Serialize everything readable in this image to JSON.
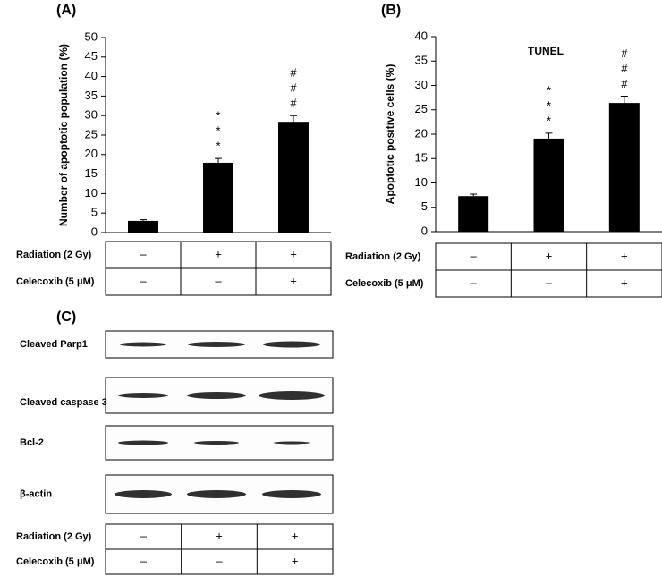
{
  "chart_data": [
    {
      "type": "bar",
      "panel": "(A)",
      "ylabel": "Number of apoptotic population (%)",
      "values": [
        3.0,
        17.9,
        28.4
      ],
      "errors": [
        0.3,
        1.1,
        1.6
      ],
      "annotations": [
        null,
        [
          "*",
          "*",
          "*"
        ],
        [
          "#",
          "#",
          "#"
        ]
      ],
      "color": "#000000",
      "ylim": [
        0,
        50
      ],
      "yticks": [
        0,
        5,
        10,
        15,
        20,
        25,
        30,
        35,
        40,
        45,
        50
      ],
      "conditions": {
        "rows": [
          {
            "label": "Radiation (2 Gy)",
            "cells": [
              "–",
              "+",
              "+"
            ]
          },
          {
            "label": "Celecoxib (5 μM)",
            "cells": [
              "–",
              "–",
              "+"
            ]
          }
        ]
      }
    },
    {
      "type": "bar",
      "panel": "(B)",
      "title": "TUNEL",
      "ylabel": "Apoptotic positive cells (%)",
      "values": [
        7.3,
        19.1,
        26.4
      ],
      "errors": [
        0.4,
        1.1,
        1.4
      ],
      "annotations": [
        null,
        [
          "*",
          "*",
          "*"
        ],
        [
          "#",
          "#",
          "#"
        ]
      ],
      "color": "#000000",
      "ylim": [
        0,
        40
      ],
      "yticks": [
        0,
        5,
        10,
        15,
        20,
        25,
        30,
        35,
        40
      ],
      "conditions": {
        "rows": [
          {
            "label": "Radiation (2 Gy)",
            "cells": [
              "–",
              "+",
              "+"
            ]
          },
          {
            "label": "Celecoxib (5 μM)",
            "cells": [
              "–",
              "–",
              "+"
            ]
          }
        ]
      }
    }
  ],
  "blot": {
    "panel": "(C)",
    "bands": [
      "Cleaved Parp1",
      "Cleaved caspase 3",
      "Bcl-2",
      "β-actin"
    ],
    "conditions": {
      "rows": [
        {
          "label": "Radiation (2 Gy)",
          "cells": [
            "–",
            "+",
            "+"
          ]
        },
        {
          "label": "Celecoxib (5 μM)",
          "cells": [
            "–",
            "–",
            "+"
          ]
        }
      ]
    }
  }
}
